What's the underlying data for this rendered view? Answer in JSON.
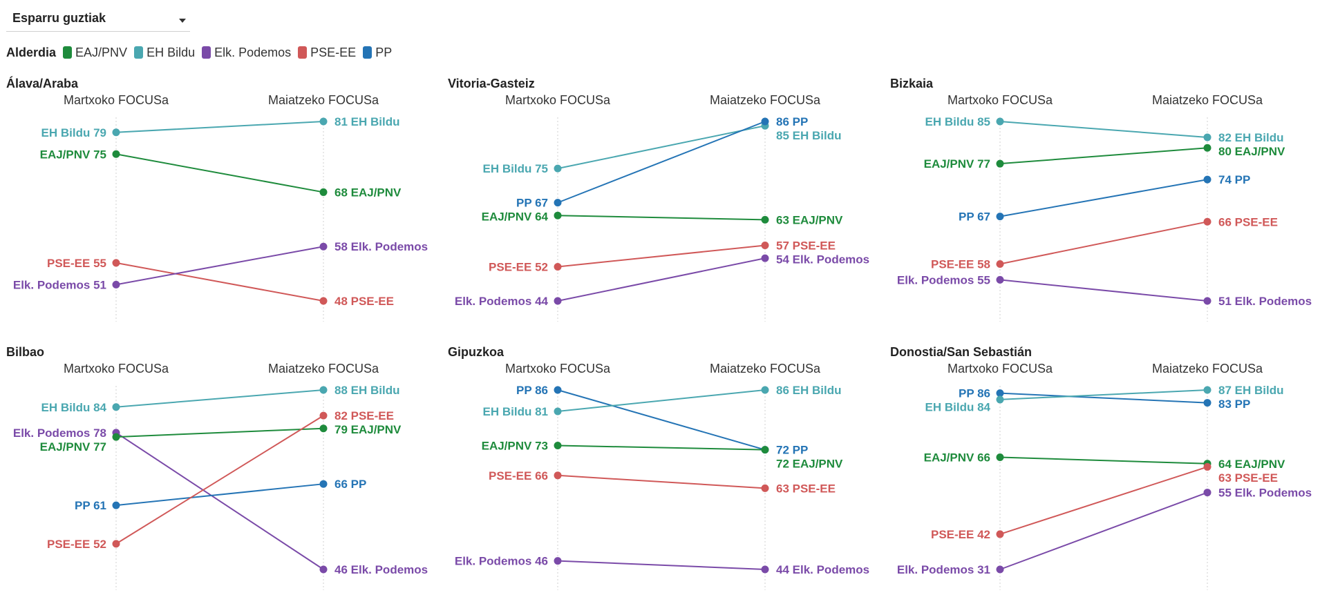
{
  "filter": {
    "selected": "Esparru guztiak"
  },
  "legend": {
    "title": "Alderdia",
    "items": [
      {
        "name": "EAJ/PNV",
        "color": "#1e8b3c"
      },
      {
        "name": "EH Bildu",
        "color": "#4aa7b0"
      },
      {
        "name": "Elk. Podemos",
        "color": "#7a4aa8"
      },
      {
        "name": "PSE-EE",
        "color": "#d05858"
      },
      {
        "name": "PP",
        "color": "#2474b5"
      }
    ]
  },
  "chart_data": [
    {
      "type": "slope",
      "title": "Álava/Araba",
      "x": [
        "Martxoko FOCUSa",
        "Maiatzeko FOCUSa"
      ],
      "series": [
        {
          "name": "EH Bildu",
          "values": [
            79,
            81
          ]
        },
        {
          "name": "EAJ/PNV",
          "values": [
            75,
            68
          ]
        },
        {
          "name": "PSE-EE",
          "values": [
            55,
            48
          ]
        },
        {
          "name": "Elk. Podemos",
          "values": [
            51,
            58
          ]
        }
      ]
    },
    {
      "type": "slope",
      "title": "Vitoria-Gasteiz",
      "x": [
        "Martxoko FOCUSa",
        "Maiatzeko FOCUSa"
      ],
      "series": [
        {
          "name": "EH Bildu",
          "values": [
            75,
            85
          ]
        },
        {
          "name": "PP",
          "values": [
            67,
            86
          ]
        },
        {
          "name": "EAJ/PNV",
          "values": [
            64,
            63
          ]
        },
        {
          "name": "PSE-EE",
          "values": [
            52,
            57
          ]
        },
        {
          "name": "Elk. Podemos",
          "values": [
            44,
            54
          ]
        }
      ]
    },
    {
      "type": "slope",
      "title": "Bizkaia",
      "x": [
        "Martxoko FOCUSa",
        "Maiatzeko FOCUSa"
      ],
      "series": [
        {
          "name": "EH Bildu",
          "values": [
            85,
            82
          ]
        },
        {
          "name": "EAJ/PNV",
          "values": [
            77,
            80
          ]
        },
        {
          "name": "PP",
          "values": [
            67,
            74
          ]
        },
        {
          "name": "PSE-EE",
          "values": [
            58,
            66
          ]
        },
        {
          "name": "Elk. Podemos",
          "values": [
            55,
            51
          ]
        }
      ]
    },
    {
      "type": "slope",
      "title": "Bilbao",
      "x": [
        "Martxoko FOCUSa",
        "Maiatzeko FOCUSa"
      ],
      "series": [
        {
          "name": "EH Bildu",
          "values": [
            84,
            88
          ]
        },
        {
          "name": "Elk. Podemos",
          "values": [
            78,
            46
          ]
        },
        {
          "name": "EAJ/PNV",
          "values": [
            77,
            79
          ]
        },
        {
          "name": "PP",
          "values": [
            61,
            66
          ]
        },
        {
          "name": "PSE-EE",
          "values": [
            52,
            82
          ]
        }
      ]
    },
    {
      "type": "slope",
      "title": "Gipuzkoa",
      "x": [
        "Martxoko FOCUSa",
        "Maiatzeko FOCUSa"
      ],
      "series": [
        {
          "name": "PP",
          "values": [
            86,
            72
          ]
        },
        {
          "name": "EH Bildu",
          "values": [
            81,
            86
          ]
        },
        {
          "name": "EAJ/PNV",
          "values": [
            73,
            72
          ]
        },
        {
          "name": "PSE-EE",
          "values": [
            66,
            63
          ]
        },
        {
          "name": "Elk. Podemos",
          "values": [
            46,
            44
          ]
        }
      ]
    },
    {
      "type": "slope",
      "title": "Donostia/San Sebastián",
      "x": [
        "Martxoko FOCUSa",
        "Maiatzeko FOCUSa"
      ],
      "series": [
        {
          "name": "PP",
          "values": [
            86,
            83
          ]
        },
        {
          "name": "EH Bildu",
          "values": [
            84,
            87
          ]
        },
        {
          "name": "EAJ/PNV",
          "values": [
            66,
            64
          ]
        },
        {
          "name": "PSE-EE",
          "values": [
            42,
            63
          ]
        },
        {
          "name": "Elk. Podemos",
          "values": [
            31,
            55
          ]
        }
      ]
    }
  ]
}
